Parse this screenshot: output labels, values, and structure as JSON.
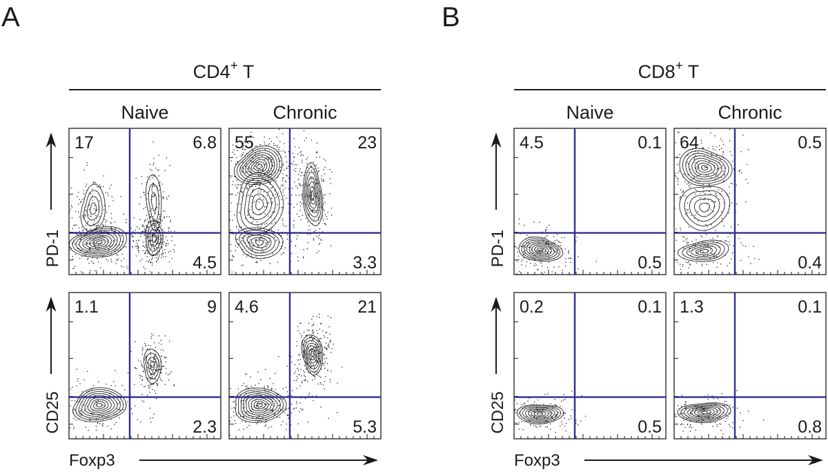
{
  "chart_data": {
    "type": "contour",
    "panels": [
      {
        "letter": "A",
        "cell_type": "CD4",
        "cell_sup": "+",
        "cell_suffix": " T",
        "columns": [
          "Naive",
          "Chronic"
        ],
        "x_label": "Foxp3",
        "rows": [
          {
            "y_label": "PD-1",
            "plots": [
              {
                "column": "Naive",
                "quadrants": {
                  "top_left": "17",
                  "top_right": "6.8",
                  "bottom_right": "4.5"
                }
              },
              {
                "column": "Chronic",
                "quadrants": {
                  "top_left": "55",
                  "top_right": "23",
                  "bottom_right": "3.3"
                }
              }
            ]
          },
          {
            "y_label": "CD25",
            "plots": [
              {
                "column": "Naive",
                "quadrants": {
                  "top_left": "1.1",
                  "top_right": "9",
                  "bottom_right": "2.3"
                }
              },
              {
                "column": "Chronic",
                "quadrants": {
                  "top_left": "4.6",
                  "top_right": "21",
                  "bottom_right": "5.3"
                }
              }
            ]
          }
        ]
      },
      {
        "letter": "B",
        "cell_type": "CD8",
        "cell_sup": "+",
        "cell_suffix": " T",
        "columns": [
          "Naive",
          "Chronic"
        ],
        "x_label": "Foxp3",
        "rows": [
          {
            "y_label": "PD-1",
            "plots": [
              {
                "column": "Naive",
                "quadrants": {
                  "top_left": "4.5",
                  "top_right": "0.1",
                  "bottom_right": "0.5"
                }
              },
              {
                "column": "Chronic",
                "quadrants": {
                  "top_left": "64",
                  "top_right": "0.5",
                  "bottom_right": "0.4"
                }
              }
            ]
          },
          {
            "y_label": "CD25",
            "plots": [
              {
                "column": "Naive",
                "quadrants": {
                  "top_left": "0.2",
                  "top_right": "0.1",
                  "bottom_right": "0.5"
                }
              },
              {
                "column": "Chronic",
                "quadrants": {
                  "top_left": "1.3",
                  "top_right": "0.1",
                  "bottom_right": "0.8"
                }
              }
            ]
          }
        ]
      }
    ]
  },
  "colors": {
    "gate_line": "#2b2f8f",
    "frame": "#1a1a1a",
    "dots": "#1a1a1a"
  }
}
